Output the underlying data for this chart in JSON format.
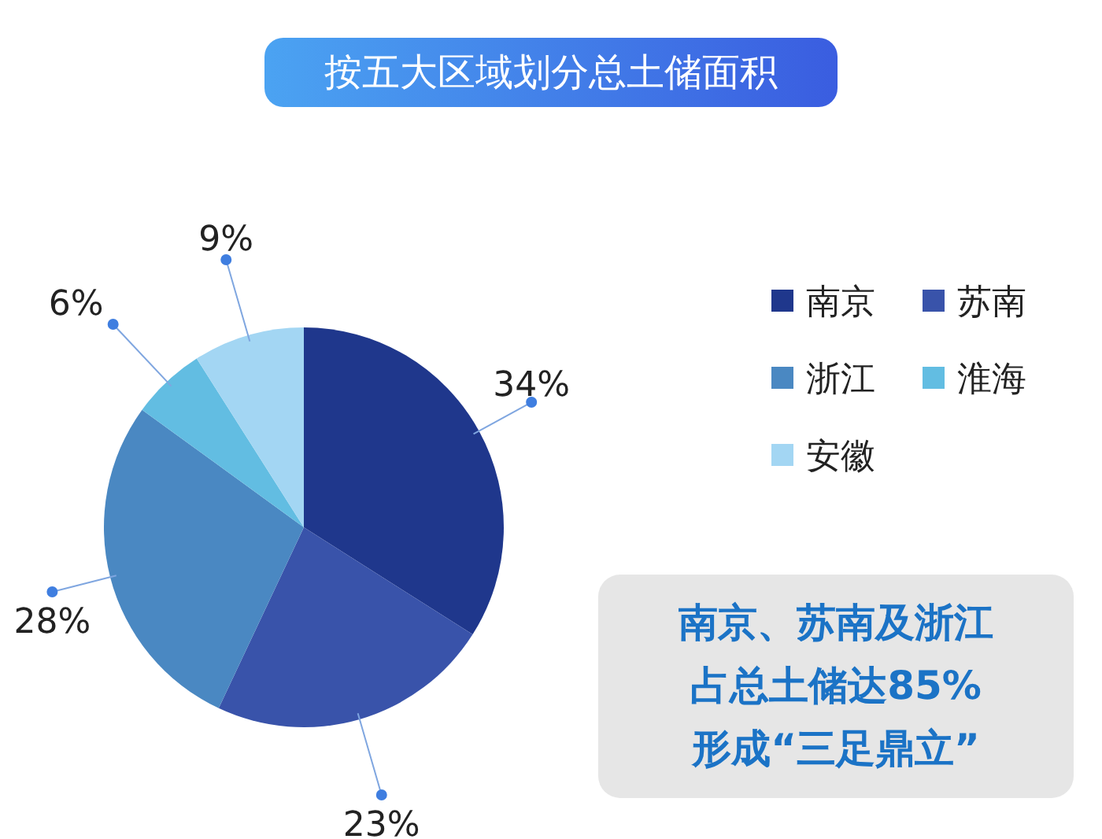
{
  "chart_data": {
    "type": "pie",
    "title": "按五大区域划分总土储面积",
    "categories": [
      "南京",
      "苏南",
      "浙江",
      "淮海",
      "安徽"
    ],
    "values": [
      34,
      23,
      28,
      6,
      9
    ],
    "colors": [
      "#1f378c",
      "#3953aa",
      "#4a88c2",
      "#62bde2",
      "#a3d6f3"
    ],
    "value_labels": [
      "34%",
      "23%",
      "28%",
      "6%",
      "9%"
    ],
    "legend": "right",
    "annotations": [
      "南京、苏南及浙江",
      "占总土储达85%",
      "形成“三足鼎立”"
    ]
  }
}
